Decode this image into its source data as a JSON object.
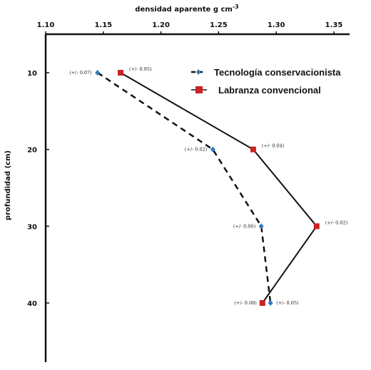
{
  "chart_data": {
    "type": "line",
    "title": "",
    "xlabel": "densidad aparente g cm",
    "xlabel_superscript": "-3",
    "ylabel": "profundidad (cm)",
    "xlim": [
      1.1,
      1.35
    ],
    "ylim": [
      0,
      47
    ],
    "x_axis_position": "top",
    "y_inverted": true,
    "grid": false,
    "legend_position": "top-right",
    "x_ticks": [
      1.1,
      1.15,
      1.2,
      1.25,
      1.3,
      1.35
    ],
    "x_tick_labels": [
      "1.10",
      "1.15",
      "1.20",
      "1.25",
      "1.30",
      "1.35"
    ],
    "y_ticks": [
      10,
      20,
      30,
      40
    ],
    "y_tick_labels": [
      "10",
      "20",
      "30",
      "40"
    ],
    "series": [
      {
        "name": "Tecnología conservacionista",
        "line_style": "dashed",
        "marker": "diamond",
        "marker_color": "#2b79c2",
        "points": [
          {
            "x": 1.145,
            "y": 10,
            "label": "(+/- 0.07)"
          },
          {
            "x": 1.245,
            "y": 20,
            "label": "(+/-  0.02)"
          },
          {
            "x": 1.287,
            "y": 30,
            "label": "(+/-  0.06)"
          },
          {
            "x": 1.295,
            "y": 40,
            "label": "(+/- 0.05)"
          }
        ]
      },
      {
        "name": "Labranza convencional",
        "line_style": "solid",
        "marker": "square",
        "marker_color": "#cc2222",
        "points": [
          {
            "x": 1.165,
            "y": 10,
            "label": "(+/-  0.05)"
          },
          {
            "x": 1.28,
            "y": 20,
            "label": "(+/- 0.04)"
          },
          {
            "x": 1.335,
            "y": 30,
            "label": "(+/- 0.02)"
          },
          {
            "x": 1.288,
            "y": 40,
            "label": "(+/- 0.08)"
          }
        ]
      }
    ]
  }
}
